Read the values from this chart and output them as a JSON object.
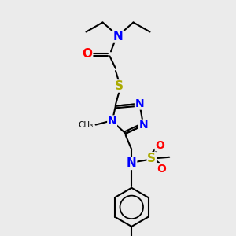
{
  "background_color": "#ebebeb",
  "black": "#000000",
  "blue": "#0000FF",
  "red": "#FF0000",
  "yellow_s": "#AAAA00",
  "lw": 1.5,
  "xlim": [
    0,
    10
  ],
  "ylim": [
    0,
    10
  ]
}
